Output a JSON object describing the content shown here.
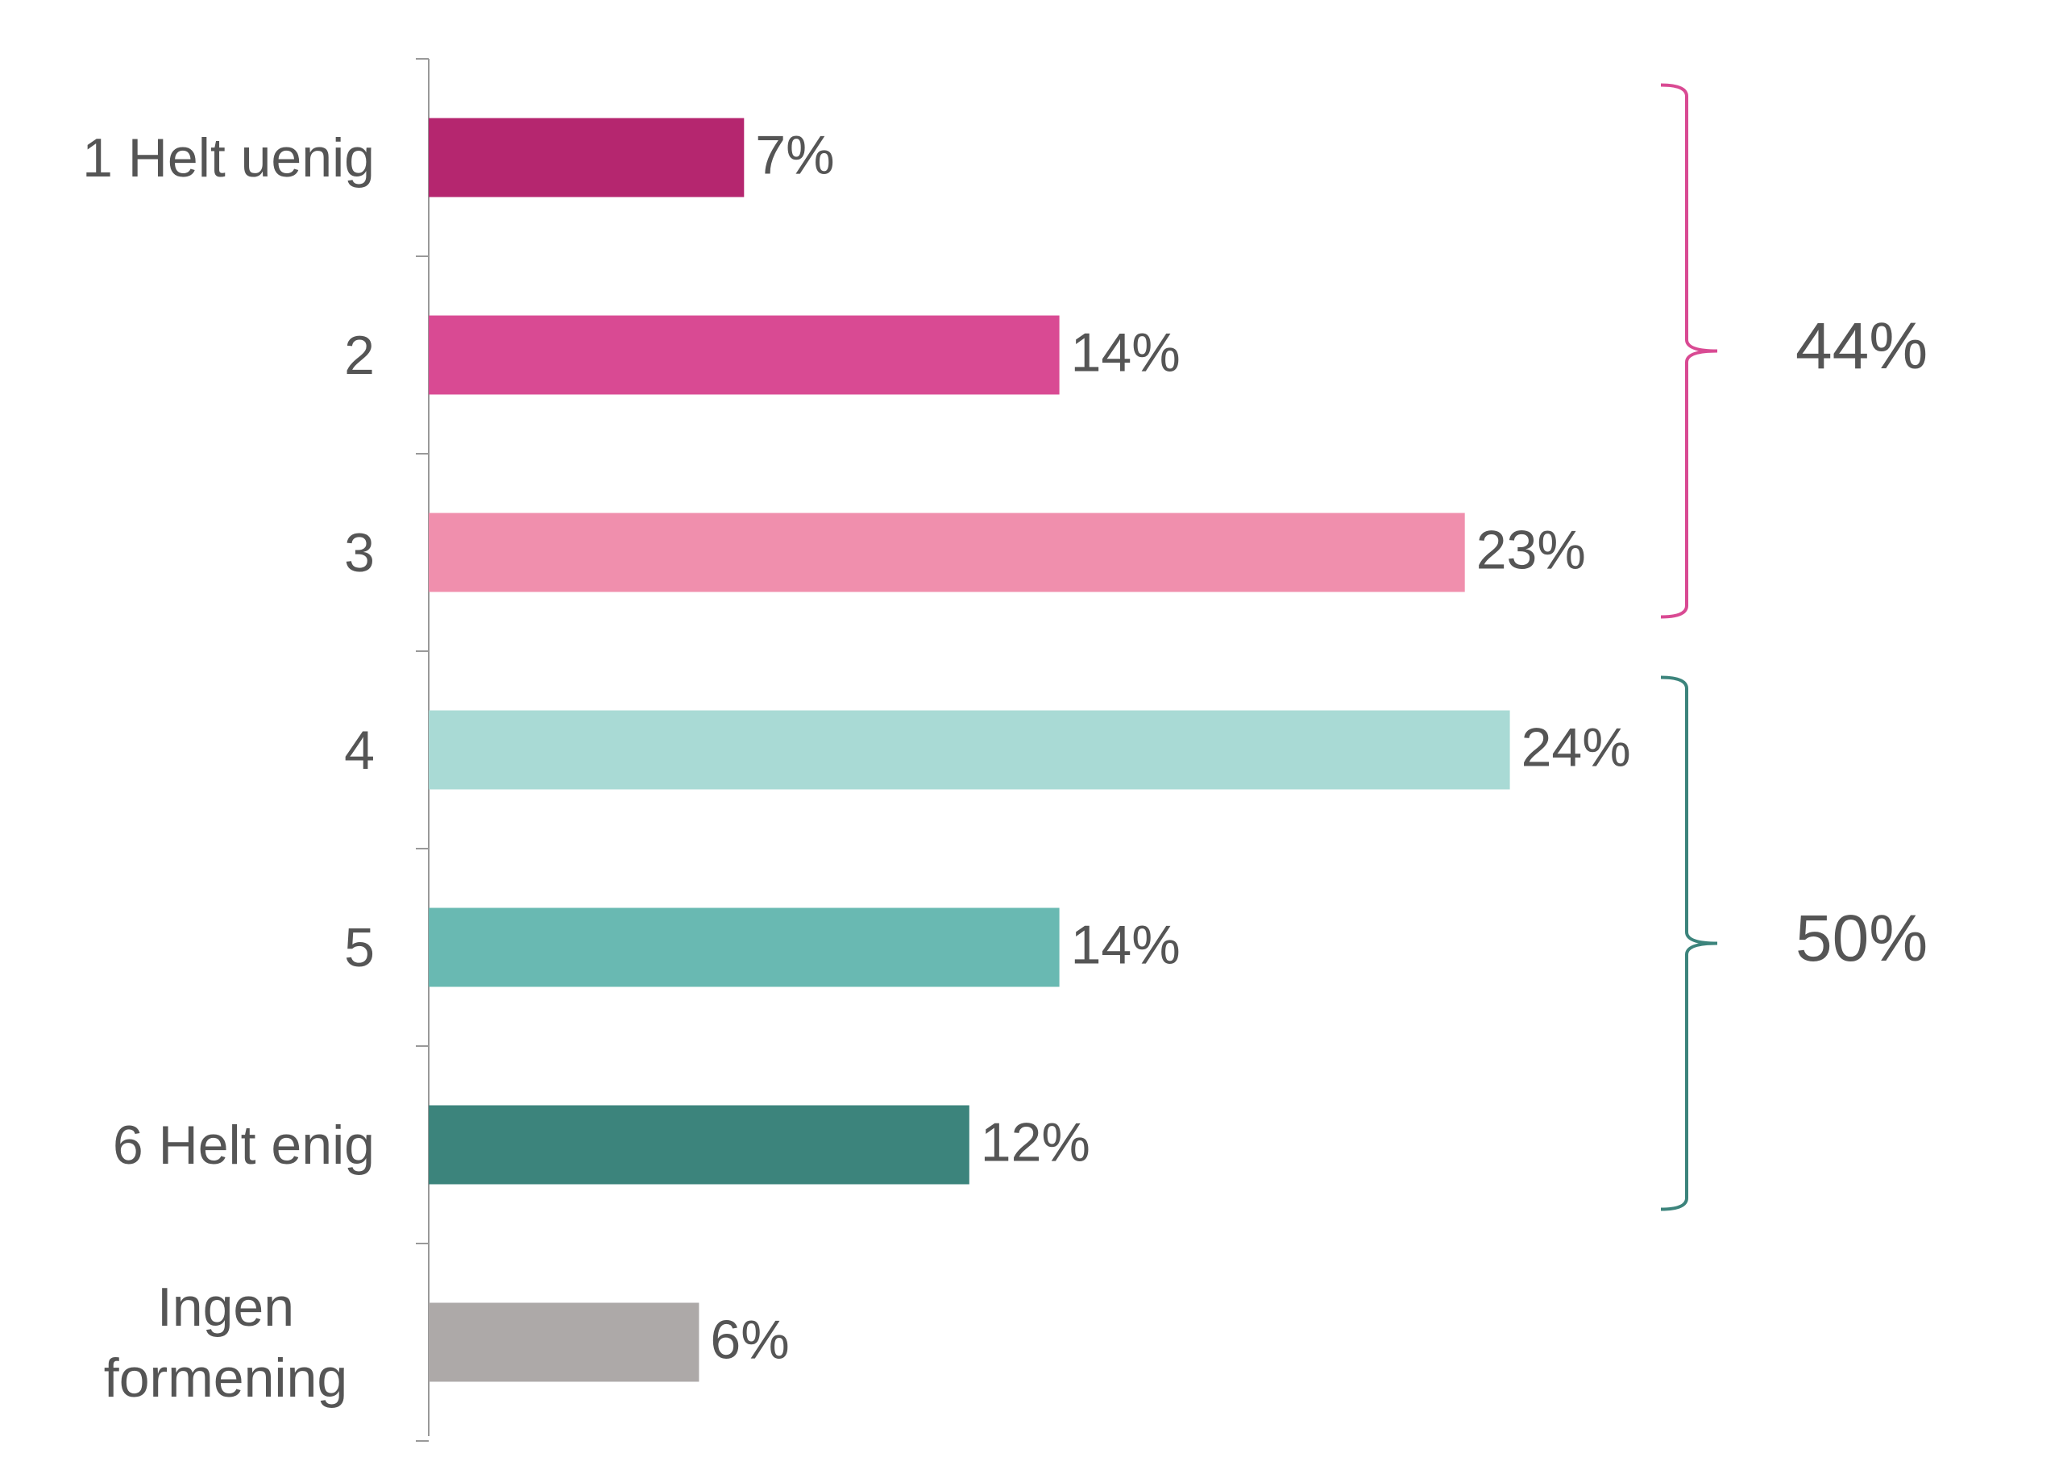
{
  "chart_data": {
    "type": "bar",
    "orientation": "horizontal",
    "categories": [
      "1 Helt uenig",
      "2",
      "3",
      "4",
      "5",
      "6 Helt enig",
      "Ingen formening"
    ],
    "values": [
      7,
      14,
      23,
      24,
      14,
      12,
      6
    ],
    "value_labels": [
      "7%",
      "14%",
      "23%",
      "24%",
      "14%",
      "12%",
      "6%"
    ],
    "colors": [
      "#b5266f",
      "#d94a93",
      "#f08fad",
      "#a9dad5",
      "#69b9b2",
      "#3c847c",
      "#ada9a8"
    ],
    "groups": [
      {
        "label": "44%",
        "value": 44,
        "from": 0,
        "to": 2,
        "color": "#d94a93"
      },
      {
        "label": "50%",
        "value": 50,
        "from": 3,
        "to": 5,
        "color": "#3c847c"
      }
    ]
  }
}
